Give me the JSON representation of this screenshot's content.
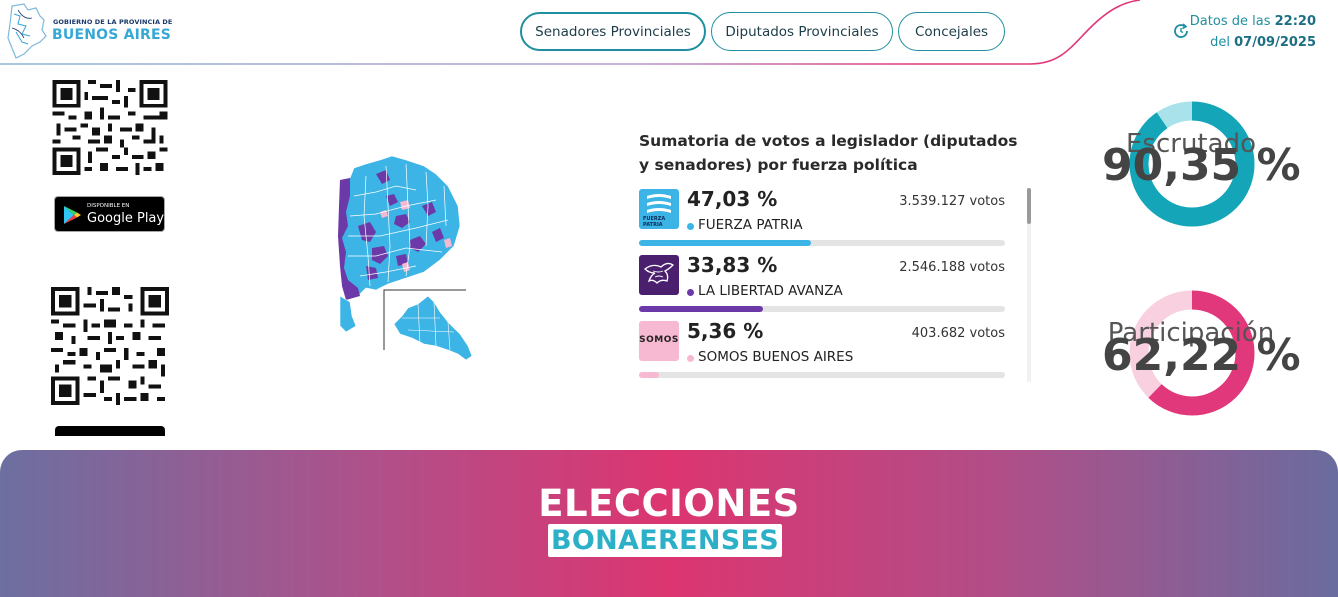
{
  "header": {
    "logo_line1": "GOBIERNO DE LA PROVINCIA DE",
    "logo_line2": "BUENOS AIRES",
    "nav": [
      {
        "label": "Senadores Provinciales",
        "active": true
      },
      {
        "label": "Diputados Provinciales",
        "active": false
      },
      {
        "label": "Concejales",
        "active": false
      }
    ],
    "updated_prefix": "Datos de las",
    "updated_time": "22:20",
    "updated_date_prefix": "del",
    "updated_date": "07/09/2025",
    "refresh_icon": "refresh-icon"
  },
  "sidebar": {
    "google_play_small": "DISPONIBLE EN",
    "google_play_big": "Google Play"
  },
  "results": {
    "title": "Sumatoria de votos a legislador (diputados y senadores) por fuerza política",
    "parties": [
      {
        "pct": "47,03 %",
        "votes": "3.539.127 votos",
        "name": "FUERZA PATRIA",
        "fraction": 0.4703,
        "color": "#3cb4e6",
        "logo_text": "FUERZA PATRIA"
      },
      {
        "pct": "33,83 %",
        "votes": "2.546.188 votos",
        "name": "LA LIBERTAD AVANZA",
        "fraction": 0.3383,
        "color": "#6b3aa8",
        "logo_text": ""
      },
      {
        "pct": "5,36 %",
        "votes": "403.682 votos",
        "name": "SOMOS BUENOS AIRES",
        "fraction": 0.0536,
        "color": "#f7b8d2",
        "logo_text": "SOMOS"
      }
    ]
  },
  "stats": {
    "escrutado_label": "Escrutado",
    "escrutado_value": "90,35 %",
    "escrutado_fraction": 0.9035,
    "escrutado_color": "#14a5b8",
    "escrutado_track": "#a9e2ea",
    "participacion_label": "Participación",
    "participacion_value": "62,22 %",
    "participacion_fraction": 0.6222,
    "participacion_color": "#e0387a",
    "participacion_track": "#f9d0df"
  },
  "footer": {
    "title": "ELECCIONES",
    "subtitle": "BONAERENSES"
  }
}
